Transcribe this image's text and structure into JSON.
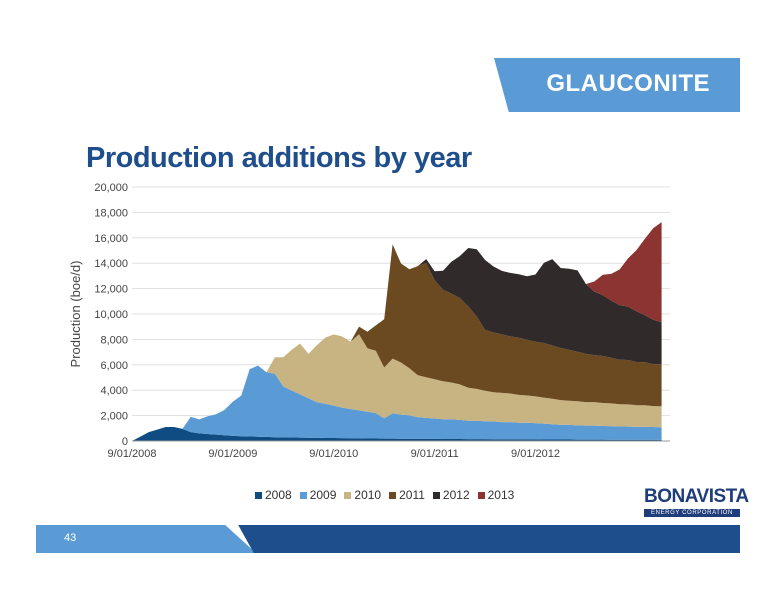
{
  "banner": {
    "text": "GLAUCONITE"
  },
  "title": "Production additions by year",
  "page_number": "43",
  "logo": {
    "word": "BONAVISTA",
    "sub": "ENERGY CORPORATION"
  },
  "chart_data": {
    "type": "area",
    "stacked": true,
    "title": "Production additions by year",
    "ylabel": "Production (boe/d)",
    "xlabel": "",
    "ylim": [
      0,
      20000
    ],
    "yticks": [
      0,
      2000,
      4000,
      6000,
      8000,
      10000,
      12000,
      14000,
      16000,
      18000,
      20000
    ],
    "ytick_labels": [
      "0",
      "2,000",
      "4,000",
      "6,000",
      "8,000",
      "10,000",
      "12,000",
      "14,000",
      "16,000",
      "18,000",
      "20,000"
    ],
    "xtick_labels": [
      "9/01/2008",
      "9/01/2009",
      "9/01/2010",
      "9/01/2011",
      "9/01/2012"
    ],
    "x_start": "9/01/2008",
    "x_end": "1/01/2014",
    "grid": true,
    "legend_position": "bottom",
    "x": [
      "2008-09",
      "2008-10",
      "2008-11",
      "2008-12",
      "2009-01",
      "2009-02",
      "2009-03",
      "2009-04",
      "2009-05",
      "2009-06",
      "2009-07",
      "2009-08",
      "2009-09",
      "2009-10",
      "2009-11",
      "2009-12",
      "2010-01",
      "2010-02",
      "2010-03",
      "2010-04",
      "2010-05",
      "2010-06",
      "2010-07",
      "2010-08",
      "2010-09",
      "2010-10",
      "2010-11",
      "2010-12",
      "2011-01",
      "2011-02",
      "2011-03",
      "2011-04",
      "2011-05",
      "2011-06",
      "2011-07",
      "2011-08",
      "2011-09",
      "2011-10",
      "2011-11",
      "2011-12",
      "2012-01",
      "2012-02",
      "2012-03",
      "2012-04",
      "2012-05",
      "2012-06",
      "2012-07",
      "2012-08",
      "2012-09",
      "2012-10",
      "2012-11",
      "2012-12",
      "2013-01",
      "2013-02",
      "2013-03",
      "2013-04",
      "2013-05",
      "2013-06",
      "2013-07",
      "2013-08",
      "2013-09",
      "2013-10",
      "2013-11",
      "2013-12"
    ],
    "series": [
      {
        "name": "2008",
        "color": "#0f4c81",
        "values": [
          0,
          350,
          700,
          900,
          1100,
          1100,
          950,
          700,
          600,
          550,
          500,
          450,
          400,
          380,
          360,
          340,
          320,
          300,
          290,
          280,
          270,
          260,
          250,
          240,
          240,
          230,
          220,
          210,
          200,
          200,
          190,
          190,
          180,
          180,
          170,
          170,
          170,
          160,
          160,
          160,
          150,
          150,
          150,
          140,
          140,
          140,
          130,
          130,
          130,
          120,
          120,
          120,
          120,
          110,
          110,
          110,
          110,
          100,
          100,
          100,
          100,
          100,
          100,
          100
        ]
      },
      {
        "name": "2009",
        "color": "#5b9bd5",
        "values": [
          0,
          0,
          0,
          0,
          0,
          0,
          0,
          1200,
          1100,
          1400,
          1600,
          2000,
          2700,
          3200,
          5300,
          5600,
          5100,
          5000,
          4000,
          3700,
          3400,
          3100,
          2800,
          2700,
          2550,
          2400,
          2300,
          2200,
          2100,
          2000,
          1600,
          2000,
          1900,
          1850,
          1700,
          1650,
          1600,
          1550,
          1550,
          1500,
          1450,
          1450,
          1400,
          1400,
          1350,
          1350,
          1300,
          1300,
          1280,
          1250,
          1200,
          1150,
          1150,
          1120,
          1100,
          1100,
          1080,
          1060,
          1050,
          1030,
          1020,
          1010,
          1000,
          990
        ]
      },
      {
        "name": "2010",
        "color": "#c8b482",
        "values": [
          0,
          0,
          0,
          0,
          0,
          0,
          0,
          0,
          0,
          0,
          0,
          0,
          0,
          0,
          0,
          0,
          0,
          1300,
          2300,
          3200,
          4000,
          3500,
          4500,
          5200,
          5600,
          5600,
          5300,
          6000,
          5000,
          4900,
          4000,
          4300,
          4100,
          3700,
          3300,
          3200,
          3100,
          3000,
          2900,
          2800,
          2600,
          2500,
          2400,
          2300,
          2300,
          2250,
          2200,
          2150,
          2100,
          2050,
          2000,
          1950,
          1900,
          1900,
          1850,
          1850,
          1800,
          1800,
          1750,
          1750,
          1700,
          1700,
          1650,
          1650
        ]
      },
      {
        "name": "2011",
        "color": "#6b4a22",
        "values": [
          0,
          0,
          0,
          0,
          0,
          0,
          0,
          0,
          0,
          0,
          0,
          0,
          0,
          0,
          0,
          0,
          0,
          0,
          0,
          0,
          0,
          0,
          0,
          0,
          0,
          0,
          0,
          600,
          1300,
          2000,
          3800,
          9000,
          7800,
          7800,
          8600,
          9000,
          7800,
          7200,
          7000,
          6800,
          6400,
          5700,
          4800,
          4700,
          4600,
          4500,
          4500,
          4400,
          4300,
          4300,
          4200,
          4100,
          4000,
          3900,
          3800,
          3700,
          3700,
          3600,
          3500,
          3500,
          3400,
          3400,
          3300,
          3300
        ]
      },
      {
        "name": "2012",
        "color": "#302a2a",
        "values": [
          0,
          0,
          0,
          0,
          0,
          0,
          0,
          0,
          0,
          0,
          0,
          0,
          0,
          0,
          0,
          0,
          0,
          0,
          0,
          0,
          0,
          0,
          0,
          0,
          0,
          0,
          0,
          0,
          0,
          0,
          0,
          0,
          0,
          0,
          0,
          300,
          700,
          1500,
          2500,
          3300,
          4600,
          5300,
          5500,
          5200,
          5000,
          5000,
          5000,
          5000,
          5300,
          6300,
          6800,
          6300,
          6400,
          6400,
          5500,
          5000,
          4800,
          4500,
          4300,
          4200,
          4000,
          3700,
          3500,
          3300
        ]
      },
      {
        "name": "2013",
        "color": "#8b3432",
        "values": [
          0,
          0,
          0,
          0,
          0,
          0,
          0,
          0,
          0,
          0,
          0,
          0,
          0,
          0,
          0,
          0,
          0,
          0,
          0,
          0,
          0,
          0,
          0,
          0,
          0,
          0,
          0,
          0,
          0,
          0,
          0,
          0,
          0,
          0,
          0,
          0,
          0,
          0,
          0,
          0,
          0,
          0,
          0,
          0,
          0,
          0,
          0,
          0,
          0,
          0,
          0,
          0,
          0,
          0,
          0,
          800,
          1600,
          2100,
          2800,
          3800,
          4800,
          6000,
          7200,
          7900
        ]
      }
    ]
  }
}
